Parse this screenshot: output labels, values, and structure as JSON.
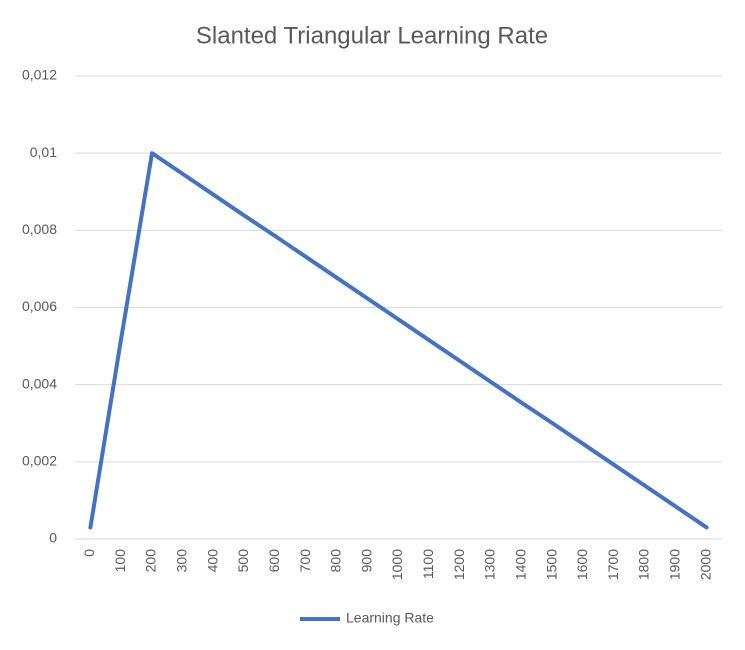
{
  "chart_data": {
    "type": "line",
    "title": "Slanted Triangular Learning Rate",
    "categories": [
      "0",
      "100",
      "200",
      "300",
      "400",
      "500",
      "600",
      "700",
      "800",
      "900",
      "1000",
      "1100",
      "1200",
      "1300",
      "1400",
      "1500",
      "1600",
      "1700",
      "1800",
      "1900",
      "2000"
    ],
    "series": [
      {
        "name": "Learning Rate",
        "color": "#4472c4",
        "values": [
          0.0003,
          0.0052,
          0.01,
          0.00946,
          0.00892,
          0.00838,
          0.00785,
          0.00731,
          0.00677,
          0.00623,
          0.00569,
          0.00515,
          0.00461,
          0.00407,
          0.00353,
          0.003,
          0.00246,
          0.00192,
          0.00138,
          0.00084,
          0.0003
        ]
      }
    ],
    "ylim": [
      0,
      0.012
    ],
    "yticks": [
      0,
      {
        "value": 0.002,
        "label": "0,002"
      },
      {
        "value": 0.004,
        "label": "0,004"
      },
      {
        "value": 0.006,
        "label": "0,006"
      },
      {
        "value": 0.008,
        "label": "0,008"
      },
      {
        "value": 0.01,
        "label": "0,01"
      },
      {
        "value": 0.012,
        "label": "0,012"
      }
    ],
    "grid": true,
    "legend": "bottom"
  }
}
